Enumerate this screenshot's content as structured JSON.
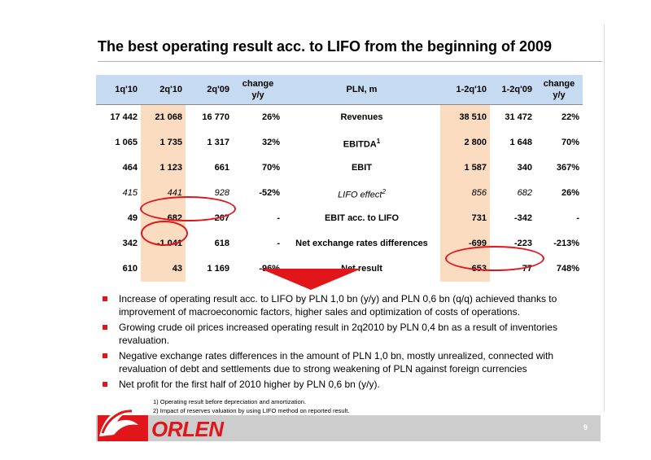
{
  "title": "The best operating result acc. to LIFO from the beginning of 2009",
  "table": {
    "headers": {
      "c1": "1q'10",
      "c2": "2q'10",
      "c3": "2q'09",
      "c4a": "change",
      "c4b": "y/y",
      "c5": "PLN, m",
      "c6": "1-2q'10",
      "c7": "1-2q'09",
      "c8a": "change",
      "c8b": "y/y"
    },
    "rows": [
      {
        "q1": "17 442",
        "q2": "21 068",
        "q09": "16 770",
        "chg": "26%",
        "label": "Revenues",
        "sup": "",
        "h1": "38 510",
        "h09": "31 472",
        "hchg": "22%"
      },
      {
        "q1": "1 065",
        "q2": "1 735",
        "q09": "1 317",
        "chg": "32%",
        "label": "EBITDA",
        "sup": "1",
        "h1": "2 800",
        "h09": "1 648",
        "hchg": "70%"
      },
      {
        "q1": "464",
        "q2": "1 123",
        "q09": "661",
        "chg": "70%",
        "label": "EBIT",
        "sup": "",
        "h1": "1 587",
        "h09": "340",
        "hchg": "367%"
      },
      {
        "q1": "415",
        "q2": "441",
        "q09": "928",
        "chg": "-52%",
        "label": "LIFO effect",
        "sup": "2",
        "h1": "856",
        "h09": "682",
        "hchg": "26%"
      },
      {
        "q1": "49",
        "q2": "682",
        "q09": "-267",
        "chg": "-",
        "label": "EBIT acc. to LIFO",
        "sup": "",
        "h1": "731",
        "h09": "-342",
        "hchg": "-"
      },
      {
        "q1": "342",
        "q2": "-1 041",
        "q09": "618",
        "chg": "-",
        "label": "Net exchange rates differences",
        "sup": "",
        "h1": "-699",
        "h09": "-223",
        "hchg": "-213%"
      },
      {
        "q1": "610",
        "q2": "43",
        "q09": "1 169",
        "chg": "-96%",
        "label": "Net result",
        "sup": "",
        "h1": "653",
        "h09": "77",
        "hchg": "748%"
      }
    ]
  },
  "bullets": [
    "Increase of operating result acc. to LIFO by PLN 1,0 bn (y/y) and PLN 0,6 bn (q/q) achieved thanks to improvement of macroeconomic factors, higher sales and optimization of costs of operations.",
    "Growing crude oil prices increased operating result in 2q2010 by PLN 0,4 bn as a result of inventories revaluation.",
    "Negative exchange rates differences in the amount of PLN 1,0 bn, mostly unrealized, connected with revaluation of debt and settlements  due to strong weakening of PLN against foreign currencies",
    "Net profit for the first half of 2010  higher by PLN 0,6 bn (y/y)."
  ],
  "footnotes": [
    "1)  Operating result before depreciation and amortization.",
    "2) Impact of reserves valuation by using LIFO method on reported result."
  ],
  "logo_text": "ORLEN",
  "page_number": "9",
  "colors": {
    "accent_red": "#e0161b",
    "header_blue": "#c6dbf2",
    "highlight_peach": "#fcdcc0",
    "footer_gray": "#cdcdcd"
  }
}
